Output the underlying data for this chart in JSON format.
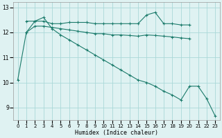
{
  "line1": {
    "x": [
      1,
      2,
      3,
      4,
      5,
      6,
      7,
      8,
      9,
      10,
      11,
      12,
      13,
      14,
      15,
      16,
      17,
      18,
      19,
      20
    ],
    "y": [
      12.45,
      12.45,
      12.45,
      12.35,
      12.35,
      12.4,
      12.4,
      12.4,
      12.35,
      12.35,
      12.35,
      12.35,
      12.35,
      12.35,
      12.7,
      12.8,
      12.35,
      12.35,
      12.3,
      12.3
    ],
    "color": "#1a7a6a"
  },
  "line2": {
    "x": [
      1,
      2,
      3,
      4,
      5,
      6,
      7,
      8,
      9,
      10,
      11,
      12,
      13,
      14,
      15,
      16,
      17,
      18,
      19,
      20
    ],
    "y": [
      12.0,
      12.25,
      12.25,
      12.2,
      12.15,
      12.1,
      12.05,
      12.0,
      11.95,
      11.95,
      11.9,
      11.9,
      11.88,
      11.85,
      11.9,
      11.88,
      11.85,
      11.82,
      11.78,
      11.75
    ],
    "color": "#1a7a6a"
  },
  "line3": {
    "x": [
      0,
      1,
      2,
      3,
      4,
      5,
      6,
      7,
      8,
      9,
      10,
      11,
      12,
      13,
      14,
      15,
      16,
      17,
      18,
      19,
      20,
      21,
      22,
      23
    ],
    "y": [
      10.1,
      12.0,
      12.45,
      12.6,
      12.15,
      11.9,
      11.7,
      11.5,
      11.3,
      11.1,
      10.9,
      10.7,
      10.5,
      10.3,
      10.1,
      10.0,
      9.85,
      9.65,
      9.5,
      9.3,
      9.85,
      9.85,
      9.35,
      8.65
    ],
    "color": "#1a7a6a"
  },
  "bg_color": "#dff2f2",
  "grid_color": "#aad8d8",
  "line_color": "#1a7a6a",
  "xlabel": "Humidex (Indice chaleur)",
  "ylim": [
    8.5,
    13.2
  ],
  "xlim": [
    -0.5,
    23.5
  ],
  "yticks": [
    9,
    10,
    11,
    12,
    13
  ],
  "xticks": [
    0,
    1,
    2,
    3,
    4,
    5,
    6,
    7,
    8,
    9,
    10,
    11,
    12,
    13,
    14,
    15,
    16,
    17,
    18,
    19,
    20,
    21,
    22,
    23
  ]
}
